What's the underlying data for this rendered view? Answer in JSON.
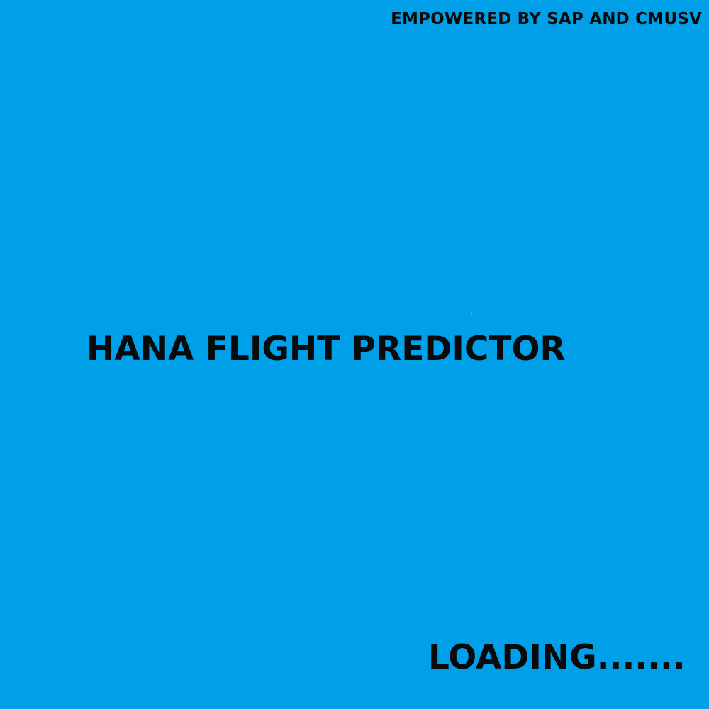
{
  "splash": {
    "tagline": "EMPOWERED BY SAP AND CMUSV",
    "app_title": "HANA FLIGHT PREDICTOR",
    "status_text": "LOADING.......",
    "background_color": "#00a0e8",
    "text_color": "#0a0a0a"
  }
}
